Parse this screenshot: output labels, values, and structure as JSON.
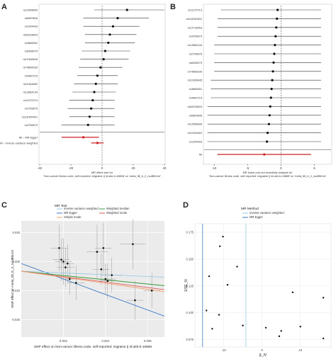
{
  "panel_letters": {
    "a": "A",
    "b": "B",
    "c": "C",
    "d": "D"
  },
  "chart_data": [
    {
      "type": "forest",
      "panel": "A",
      "snps": [
        {
          "label": "rs12058640",
          "est": 16,
          "lo": -5,
          "hi": 40
        },
        {
          "label": "rs6500606",
          "est": 10,
          "lo": -12,
          "hi": 30
        },
        {
          "label": "rs1244493",
          "est": 7,
          "lo": -12,
          "hi": 24
        },
        {
          "label": "rs62018603",
          "est": 5,
          "lo": -11,
          "hi": 22
        },
        {
          "label": "rs4666051",
          "est": 4,
          "lo": -11,
          "hi": 21
        },
        {
          "label": "rs6438079",
          "est": 2,
          "lo": -13,
          "hi": 18
        },
        {
          "label": "rs10166645",
          "est": 1,
          "lo": -14,
          "hi": 17
        },
        {
          "label": "rs74656039",
          "est": -1,
          "lo": -15,
          "hi": 13
        },
        {
          "label": "rs4490715",
          "est": -3,
          "lo": -16,
          "hi": 10
        },
        {
          "label": "rs10164652",
          "est": -4,
          "lo": -18,
          "hi": 10
        },
        {
          "label": "rs12684144",
          "est": -5,
          "lo": -19,
          "hi": 9
        },
        {
          "label": "rs11175713",
          "est": -6,
          "lo": -21,
          "hi": 8
        },
        {
          "label": "rs2706675",
          "est": -7,
          "lo": -22,
          "hi": 8
        },
        {
          "label": "rs118150401",
          "est": -8,
          "lo": -21,
          "hi": 8
        },
        {
          "label": "rs4706679",
          "est": -9,
          "lo": -26,
          "hi": 8
        }
      ],
      "summary": [
        {
          "label": "All – MR Egger",
          "est": -12,
          "lo": -26,
          "hi": -2,
          "color": "#cc2222"
        },
        {
          "label": "All – Inverse variance weighted",
          "est": -3,
          "lo": -7,
          "hi": 1,
          "color": "#cc2222"
        }
      ],
      "xticks": [
        -40,
        -20,
        0,
        20,
        40
      ],
      "xlim": [
        -40,
        40
      ],
      "xlabel": "MR effect size for\n'Non-cancer illness code, self-reported: migraine || id:ukb-b-16868' on 'meta_tilt_b_2_nodBM.txt'"
    },
    {
      "type": "forest",
      "panel": "B",
      "snps": [
        {
          "label": "rs11175713",
          "est": -0.5,
          "lo": -9,
          "hi": 6
        },
        {
          "label": "rs118150401",
          "est": -0.6,
          "lo": -9.5,
          "hi": 6
        },
        {
          "label": "rs12718453",
          "est": -0.7,
          "lo": -9.5,
          "hi": 6
        },
        {
          "label": "rs4706679",
          "est": -0.8,
          "lo": -9.5,
          "hi": 6
        },
        {
          "label": "rs12684144",
          "est": -0.9,
          "lo": -10,
          "hi": 6
        },
        {
          "label": "rs2706675",
          "est": -1.0,
          "lo": -10,
          "hi": 6
        },
        {
          "label": "rs6438079",
          "est": -1.1,
          "lo": -10,
          "hi": 6
        },
        {
          "label": "rs74656039",
          "est": -1.2,
          "lo": -10,
          "hi": 6
        },
        {
          "label": "rs10166645",
          "est": -1.3,
          "lo": -10.5,
          "hi": 6
        },
        {
          "label": "rs4666051",
          "est": -1.4,
          "lo": -10.5,
          "hi": 6
        },
        {
          "label": "rs4490715",
          "est": -1.5,
          "lo": -10.5,
          "hi": 6
        },
        {
          "label": "rs62018603",
          "est": -1.6,
          "lo": -11,
          "hi": 6
        },
        {
          "label": "rs6500606",
          "est": -1.7,
          "lo": -11,
          "hi": 6
        },
        {
          "label": "rs12058640",
          "est": -1.8,
          "lo": -11,
          "hi": 6
        },
        {
          "label": "rs10164652",
          "est": -2.0,
          "lo": -11,
          "hi": 6
        },
        {
          "label": "rs1244493",
          "est": -2.1,
          "lo": -11,
          "hi": 6
        }
      ],
      "summary": [
        {
          "label": "All",
          "est": -2.5,
          "lo": -9.5,
          "hi": 4.5,
          "color": "#cc2222"
        }
      ],
      "xticks": [
        -10,
        -5,
        0,
        5,
        10
      ],
      "xlim": [
        -11.5,
        7.5
      ],
      "xlabel": "MR leave-one-out sensitivity analysis for\n'Non-cancer illness code, self-reported: migraine || id:ukb-b-16868' on 'meta_tilt_b_2_nodBM.txt'"
    },
    {
      "type": "scatter",
      "panel": "C",
      "legend_title": "MR Test",
      "legend": [
        {
          "name": "Inverse variance weighted",
          "color": "#9ec9e2"
        },
        {
          "name": "MR Egger",
          "color": "#3b77c4"
        },
        {
          "name": "Simple mode",
          "color": "#f2a06a"
        },
        {
          "name": "Weighted median",
          "color": "#3a9a3a"
        },
        {
          "name": "Weighted mode",
          "color": "#d95a5a"
        }
      ],
      "points": [
        {
          "x": 0.0018,
          "y": 0.012,
          "xe": 0.0004,
          "ye": 0.012
        },
        {
          "x": 0.0019,
          "y": 0.006,
          "xe": 0.0004,
          "ye": 0.011
        },
        {
          "x": 0.002,
          "y": 0.005,
          "xe": 0.0004,
          "ye": 0.012
        },
        {
          "x": 0.0022,
          "y": 0.004,
          "xe": 0.0003,
          "ye": 0.01
        },
        {
          "x": 0.0021,
          "y": 0.002,
          "xe": 0.0004,
          "ye": 0.01
        },
        {
          "x": 0.0023,
          "y": -0.004,
          "xe": 0.0004,
          "ye": 0.008
        },
        {
          "x": 0.0026,
          "y": -0.006,
          "xe": 0.0004,
          "ye": 0.009
        },
        {
          "x": 0.0036,
          "y": 0.01,
          "xe": 0.0005,
          "ye": 0.014
        },
        {
          "x": 0.0038,
          "y": 0.001,
          "xe": 0.0004,
          "ye": 0.008
        },
        {
          "x": 0.0039,
          "y": 0.012,
          "xe": 0.0004,
          "ye": 0.013
        },
        {
          "x": 0.004,
          "y": -0.004,
          "xe": 0.0005,
          "ye": 0.008
        },
        {
          "x": 0.0041,
          "y": -0.005,
          "xe": 0.0004,
          "ye": 0.009
        },
        {
          "x": 0.0043,
          "y": -0.002,
          "xe": 0.0005,
          "ye": 0.009
        },
        {
          "x": 0.0053,
          "y": 0.014,
          "xe": 0.0006,
          "ye": 0.013
        },
        {
          "x": 0.0054,
          "y": -0.015,
          "xe": 0.0004,
          "ye": 0.01
        },
        {
          "x": 0.0062,
          "y": -0.01,
          "xe": 0.0004,
          "ye": 0.009
        }
      ],
      "lines": [
        {
          "name": "MR Egger",
          "intercept": 0.004,
          "slope": -4.0,
          "color": "#3b77c4"
        },
        {
          "name": "Inverse variance weighted",
          "intercept": 0.0,
          "slope": -0.45,
          "color": "#9ec9e2"
        },
        {
          "name": "Weighted median",
          "intercept": 0.0,
          "slope": -1.1,
          "color": "#3a9a3a"
        },
        {
          "name": "Weighted mode",
          "intercept": 0.0,
          "slope": -1.4,
          "color": "#d95a5a"
        },
        {
          "name": "Simple mode",
          "intercept": 0.0,
          "slope": -1.55,
          "color": "#f2a06a"
        }
      ],
      "xticks": [
        0.002,
        0.004,
        0.006
      ],
      "xtick_labels": [
        "0.002",
        "0.004",
        "0.006"
      ],
      "yticks": [
        -0.025,
        -0.01,
        0.005,
        0.02
      ],
      "ytick_labels": [
        "-0.025",
        "-0.010",
        "0.005",
        "0.020"
      ],
      "xlim": [
        0.0,
        0.0068
      ],
      "ylim": [
        -0.034,
        0.026
      ],
      "xlabel": "SNP effect on Non-cancer illness code, self-reported: migraine || id:ukb-b-16868",
      "ylabel": "SNP effect on meta_tilt_b_2_nodBM.txt"
    },
    {
      "type": "funnel",
      "panel": "D",
      "legend_title": "MR Method",
      "legend": [
        {
          "name": "Inverse variance weighted",
          "color": "#9ec9e2"
        },
        {
          "name": "MR Egger",
          "color": "#3b77c4"
        }
      ],
      "vlines": [
        {
          "name": "MR Egger",
          "x": -15.5,
          "color": "#3b77c4"
        },
        {
          "name": "Inverse variance weighted",
          "x": -4.2,
          "color": "#9ec9e2"
        }
      ],
      "points": [
        {
          "x": -10.2,
          "y": 0.171
        },
        {
          "x": -11.0,
          "y": 0.162
        },
        {
          "x": -6.5,
          "y": 0.143
        },
        {
          "x": -13.8,
          "y": 0.134
        },
        {
          "x": -9.0,
          "y": 0.126
        },
        {
          "x": -14.5,
          "y": 0.102
        },
        {
          "x": -11.2,
          "y": 0.098
        },
        {
          "x": 8.0,
          "y": 0.119
        },
        {
          "x": 16.0,
          "y": 0.114
        },
        {
          "x": -13.0,
          "y": 0.085
        },
        {
          "x": 1.0,
          "y": 0.086
        },
        {
          "x": -5.0,
          "y": 0.088
        },
        {
          "x": 5.0,
          "y": 0.083
        },
        {
          "x": 10.0,
          "y": 0.087
        },
        {
          "x": 4.5,
          "y": 0.078
        },
        {
          "x": 16.0,
          "y": 0.076
        }
      ],
      "xticks": [
        -10,
        0,
        10
      ],
      "yticks": [
        0.075,
        0.1,
        0.125,
        0.15,
        0.175
      ],
      "ytick_labels": [
        "0.075",
        "0.100",
        "0.125",
        "0.150",
        "0.175"
      ],
      "xlim": [
        -17.5,
        18
      ],
      "ylim": [
        0.068,
        0.183
      ],
      "xlabel": "β_IV",
      "ylabel": "1/SE_IV"
    }
  ]
}
